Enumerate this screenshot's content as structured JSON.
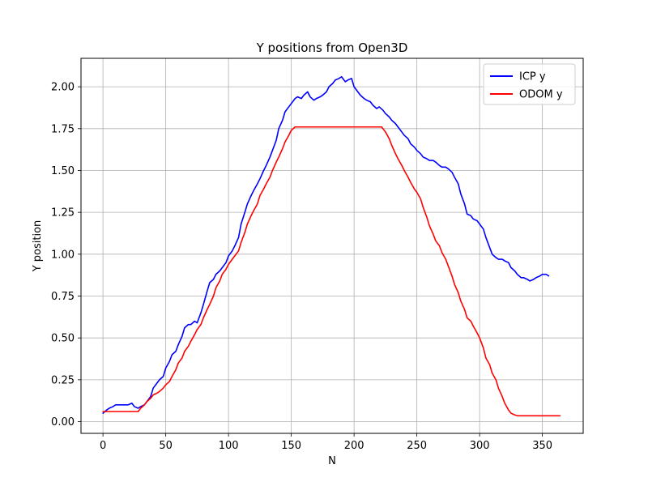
{
  "chart_data": {
    "type": "line",
    "title": "Y positions from Open3D",
    "xlabel": "N",
    "ylabel": "Y position",
    "xlim": [
      -17.5,
      382.5
    ],
    "ylim": [
      -0.07,
      2.17
    ],
    "xticks": [
      0,
      50,
      100,
      150,
      200,
      250,
      300,
      350
    ],
    "xtick_labels": [
      "0",
      "50",
      "100",
      "150",
      "200",
      "250",
      "300",
      "350"
    ],
    "yticks": [
      0.0,
      0.25,
      0.5,
      0.75,
      1.0,
      1.25,
      1.5,
      1.75,
      2.0
    ],
    "ytick_labels": [
      "0.00",
      "0.25",
      "0.50",
      "0.75",
      "1.00",
      "1.25",
      "1.50",
      "1.75",
      "2.00"
    ],
    "grid": true,
    "legend_position": "top-right",
    "series": [
      {
        "name": "ICP y",
        "color": "#0000ff",
        "x": [
          0,
          3,
          5,
          8,
          10,
          13,
          15,
          18,
          20,
          23,
          25,
          28,
          30,
          33,
          35,
          38,
          40,
          43,
          45,
          48,
          50,
          53,
          55,
          58,
          60,
          63,
          65,
          68,
          70,
          73,
          75,
          78,
          80,
          83,
          85,
          88,
          90,
          93,
          95,
          98,
          100,
          103,
          105,
          108,
          110,
          113,
          115,
          118,
          120,
          123,
          125,
          128,
          130,
          133,
          135,
          138,
          140,
          143,
          145,
          148,
          150,
          153,
          155,
          158,
          160,
          163,
          165,
          168,
          170,
          173,
          175,
          178,
          180,
          183,
          185,
          188,
          190,
          193,
          195,
          198,
          200,
          203,
          205,
          208,
          210,
          213,
          215,
          218,
          220,
          223,
          225,
          228,
          230,
          233,
          235,
          238,
          240,
          243,
          245,
          248,
          250,
          253,
          255,
          258,
          260,
          263,
          265,
          268,
          270,
          273,
          275,
          278,
          280,
          283,
          285,
          288,
          290,
          293,
          295,
          298,
          300,
          303,
          305,
          308,
          310,
          313,
          315,
          318,
          320,
          323,
          325,
          328,
          330,
          333,
          335,
          338,
          340,
          343,
          345,
          348,
          350,
          353,
          355
        ],
        "y": [
          0.05,
          0.07,
          0.08,
          0.09,
          0.1,
          0.1,
          0.1,
          0.1,
          0.1,
          0.11,
          0.09,
          0.08,
          0.09,
          0.1,
          0.12,
          0.15,
          0.2,
          0.23,
          0.25,
          0.27,
          0.32,
          0.36,
          0.4,
          0.42,
          0.46,
          0.51,
          0.56,
          0.58,
          0.58,
          0.6,
          0.59,
          0.65,
          0.7,
          0.78,
          0.83,
          0.85,
          0.88,
          0.9,
          0.92,
          0.95,
          0.99,
          1.02,
          1.05,
          1.1,
          1.18,
          1.25,
          1.3,
          1.35,
          1.38,
          1.42,
          1.45,
          1.5,
          1.53,
          1.58,
          1.62,
          1.68,
          1.75,
          1.8,
          1.85,
          1.88,
          1.9,
          1.93,
          1.94,
          1.93,
          1.95,
          1.97,
          1.94,
          1.92,
          1.93,
          1.94,
          1.95,
          1.97,
          2.0,
          2.02,
          2.04,
          2.05,
          2.06,
          2.03,
          2.04,
          2.05,
          2.0,
          1.97,
          1.95,
          1.93,
          1.92,
          1.91,
          1.89,
          1.87,
          1.88,
          1.86,
          1.84,
          1.82,
          1.8,
          1.78,
          1.76,
          1.73,
          1.71,
          1.69,
          1.66,
          1.64,
          1.62,
          1.6,
          1.58,
          1.57,
          1.56,
          1.56,
          1.55,
          1.53,
          1.52,
          1.52,
          1.51,
          1.49,
          1.46,
          1.42,
          1.36,
          1.3,
          1.24,
          1.23,
          1.21,
          1.2,
          1.18,
          1.15,
          1.1,
          1.04,
          1.0,
          0.98,
          0.97,
          0.97,
          0.96,
          0.95,
          0.92,
          0.9,
          0.88,
          0.86,
          0.86,
          0.85,
          0.84,
          0.85,
          0.86,
          0.87,
          0.88,
          0.88,
          0.87
        ]
      },
      {
        "name": "ODOM y",
        "color": "#ff0000",
        "x": [
          0,
          5,
          10,
          15,
          20,
          25,
          28,
          30,
          33,
          35,
          38,
          40,
          43,
          45,
          48,
          50,
          53,
          55,
          58,
          60,
          63,
          65,
          68,
          70,
          73,
          75,
          78,
          80,
          83,
          85,
          88,
          90,
          93,
          95,
          98,
          100,
          103,
          105,
          108,
          110,
          113,
          115,
          118,
          120,
          123,
          125,
          128,
          130,
          133,
          135,
          138,
          140,
          143,
          145,
          148,
          150,
          153,
          155,
          158,
          160,
          170,
          180,
          190,
          200,
          210,
          220,
          222,
          225,
          228,
          230,
          233,
          235,
          238,
          240,
          243,
          245,
          248,
          250,
          253,
          255,
          258,
          260,
          263,
          265,
          268,
          270,
          273,
          275,
          278,
          280,
          283,
          285,
          288,
          290,
          293,
          295,
          298,
          300,
          303,
          305,
          308,
          310,
          313,
          315,
          318,
          320,
          323,
          325,
          328,
          330,
          335,
          340,
          350,
          360,
          364
        ],
        "y": [
          0.06,
          0.06,
          0.06,
          0.06,
          0.06,
          0.06,
          0.06,
          0.08,
          0.1,
          0.12,
          0.14,
          0.16,
          0.17,
          0.18,
          0.2,
          0.22,
          0.24,
          0.27,
          0.31,
          0.35,
          0.38,
          0.42,
          0.45,
          0.48,
          0.52,
          0.55,
          0.58,
          0.62,
          0.67,
          0.7,
          0.75,
          0.8,
          0.84,
          0.88,
          0.91,
          0.94,
          0.97,
          0.99,
          1.02,
          1.07,
          1.13,
          1.18,
          1.23,
          1.26,
          1.3,
          1.35,
          1.39,
          1.42,
          1.46,
          1.5,
          1.55,
          1.58,
          1.63,
          1.67,
          1.71,
          1.74,
          1.76,
          1.76,
          1.76,
          1.76,
          1.76,
          1.76,
          1.76,
          1.76,
          1.76,
          1.76,
          1.76,
          1.73,
          1.69,
          1.65,
          1.6,
          1.57,
          1.53,
          1.5,
          1.46,
          1.43,
          1.39,
          1.37,
          1.33,
          1.28,
          1.22,
          1.17,
          1.12,
          1.08,
          1.05,
          1.01,
          0.97,
          0.93,
          0.87,
          0.82,
          0.77,
          0.72,
          0.67,
          0.62,
          0.6,
          0.57,
          0.53,
          0.5,
          0.44,
          0.38,
          0.34,
          0.29,
          0.25,
          0.2,
          0.15,
          0.11,
          0.07,
          0.05,
          0.04,
          0.035,
          0.035,
          0.035,
          0.035,
          0.035,
          0.035
        ]
      }
    ]
  }
}
